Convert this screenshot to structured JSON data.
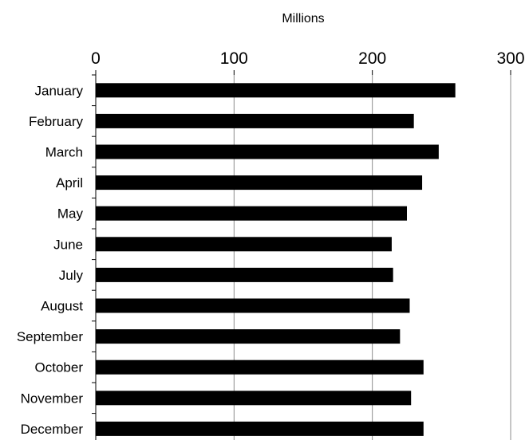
{
  "chart_data": {
    "type": "bar",
    "orientation": "horizontal",
    "x_unit_label": "Millions",
    "categories": [
      "January",
      "February",
      "March",
      "April",
      "May",
      "June",
      "July",
      "August",
      "September",
      "October",
      "November",
      "December"
    ],
    "values": [
      260,
      230,
      248,
      236,
      225,
      214,
      215,
      227,
      220,
      237,
      228,
      237
    ],
    "xlim": [
      0,
      300
    ],
    "xticks": [
      0,
      100,
      200,
      300
    ],
    "x_axis_position": "top",
    "grid": "vertical",
    "bar_color": "#000000"
  }
}
